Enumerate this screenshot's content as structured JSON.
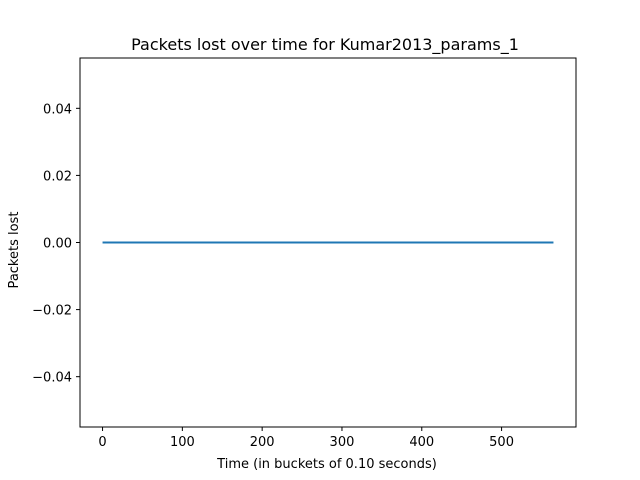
{
  "chart_data": {
    "type": "line",
    "title": "Packets lost over time for Kumar2013_params_1",
    "xlabel": "Time (in buckets of 0.10 seconds)",
    "ylabel": "Packets lost",
    "xlim": [
      -28.25,
      593.25
    ],
    "ylim": [
      -0.055,
      0.055
    ],
    "x_ticks": [
      0,
      100,
      200,
      300,
      400,
      500
    ],
    "x_tick_labels": [
      "0",
      "100",
      "200",
      "300",
      "400",
      "500"
    ],
    "y_ticks": [
      0.04,
      0.02,
      0.0,
      -0.02,
      -0.04
    ],
    "y_tick_labels": [
      "0.04",
      "0.02",
      "0.00",
      "−0.02",
      "−0.04"
    ],
    "grid": false,
    "series": [
      {
        "color": "#1f77b4",
        "x": [
          0,
          565
        ],
        "y": [
          0,
          0
        ]
      }
    ]
  }
}
